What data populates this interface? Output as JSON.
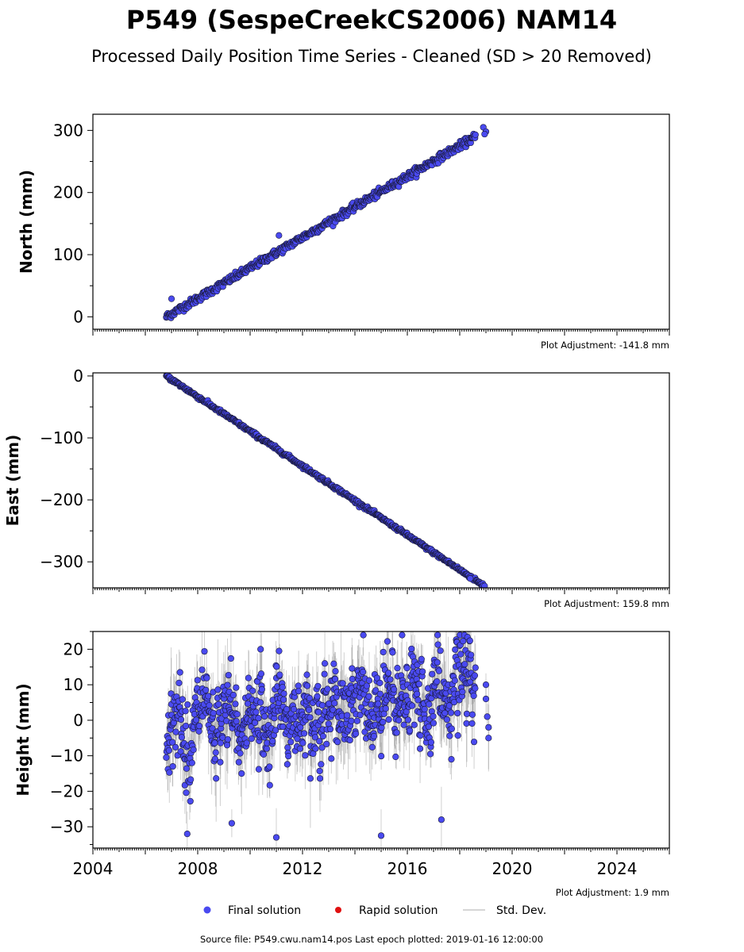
{
  "title": "P549 (SespeCreekCS2006) NAM14",
  "subtitle": "Processed Daily Position Time Series - Cleaned (SD > 20 Removed)",
  "colors": {
    "final": "#4a4af0",
    "rapid": "#e01010",
    "stddev": "#c8c8c8"
  },
  "legend": {
    "final": "Final solution",
    "rapid": "Rapid solution",
    "stddev": "Std. Dev."
  },
  "source": "Source file: P549.cwu.nam14.pos  Last epoch plotted: 2019-01-16 12:00:00",
  "chart_data": [
    {
      "type": "scatter",
      "ylabel": "North (mm)",
      "adjustment": "Plot Adjustment: -141.8 mm",
      "xlim": [
        2004,
        2026
      ],
      "ylim": [
        -20,
        326
      ],
      "yticks": [
        0,
        100,
        200,
        300
      ],
      "start": {
        "x": 2006.8,
        "y": 0
      },
      "end": {
        "x": 2018.6,
        "y": 290
      },
      "scatter_sd": 3,
      "outliers": [
        {
          "x": 2007.0,
          "y": 29
        },
        {
          "x": 2011.1,
          "y": 131
        },
        {
          "x": 2018.9,
          "y": 305
        },
        {
          "x": 2019.0,
          "y": 298
        },
        {
          "x": 2018.95,
          "y": 294
        }
      ],
      "series": [
        {
          "values": []
        }
      ]
    },
    {
      "type": "scatter",
      "ylabel": "East (mm)",
      "adjustment": "Plot Adjustment: 159.8 mm",
      "xlim": [
        2004,
        2026
      ],
      "ylim": [
        -342,
        5
      ],
      "yticks": [
        0,
        -100,
        -200,
        -300
      ],
      "start": {
        "x": 2006.8,
        "y": 0
      },
      "end": {
        "x": 2018.9,
        "y": -338
      },
      "scatter_sd": 1.5,
      "outliers": [
        {
          "x": 2018.4,
          "y": -327
        },
        {
          "x": 2018.95,
          "y": -339
        }
      ],
      "series": [
        {
          "values": []
        }
      ]
    },
    {
      "type": "scatter",
      "ylabel": "Height (mm)",
      "adjustment": "Plot Adjustment: 1.9 mm",
      "xlim": [
        2004,
        2026
      ],
      "ylim": [
        -36,
        25
      ],
      "yticks": [
        20,
        10,
        0,
        -10,
        -20,
        -30
      ],
      "xticks": [
        "2004",
        "2008",
        "2012",
        "2016",
        "2020",
        "2024"
      ],
      "start": {
        "x": 2006.8,
        "y": -3
      },
      "end": {
        "x": 2018.6,
        "y": 8
      },
      "scatter_sd": 7,
      "outliers": [
        {
          "x": 2007.6,
          "y": -32
        },
        {
          "x": 2009.3,
          "y": -29
        },
        {
          "x": 2011.0,
          "y": -33
        },
        {
          "x": 2015.0,
          "y": -32.5
        },
        {
          "x": 2017.3,
          "y": -28
        },
        {
          "x": 2010.4,
          "y": 20
        },
        {
          "x": 2015.8,
          "y": 24
        },
        {
          "x": 2019.0,
          "y": 10
        },
        {
          "x": 2019.0,
          "y": 6
        },
        {
          "x": 2019.05,
          "y": 1
        },
        {
          "x": 2019.1,
          "y": -2
        },
        {
          "x": 2019.1,
          "y": -5
        }
      ],
      "series": [
        {
          "values": []
        }
      ]
    }
  ]
}
